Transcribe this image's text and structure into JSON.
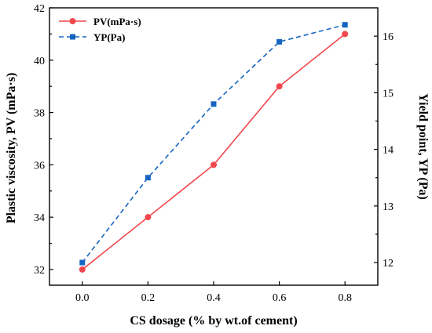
{
  "chart_data": {
    "type": "line",
    "xlabel": "CS dosage (% by wt.of cement)",
    "ylabel_left": "Plastic viscosity, PV (mPa·s)",
    "ylabel_right": "Yield point, YP (Pa)",
    "x": [
      0.0,
      0.2,
      0.4,
      0.6,
      0.8
    ],
    "x_ticks": [
      "0.0",
      "0.2",
      "0.4",
      "0.6",
      "0.8"
    ],
    "xlim": [
      -0.1,
      0.9
    ],
    "ylim_left": [
      31.4,
      42
    ],
    "y_ticks_left": [
      "32",
      "34",
      "36",
      "38",
      "40",
      "42"
    ],
    "ylim_right": [
      11.6,
      16.5
    ],
    "y_ticks_right": [
      "12",
      "13",
      "14",
      "15",
      "16"
    ],
    "legend_position": "top-left",
    "series": [
      {
        "name": "PV(mPa·s)",
        "axis": "left",
        "values": [
          32,
          34,
          36,
          39,
          41
        ],
        "color": "#f0474c",
        "line_style": "solid",
        "marker": "circle"
      },
      {
        "name": "YP(Pa)",
        "axis": "right",
        "values": [
          12.0,
          13.5,
          14.8,
          15.9,
          16.2
        ],
        "color": "#1565c0",
        "line_style": "dashed",
        "marker": "square"
      }
    ]
  }
}
